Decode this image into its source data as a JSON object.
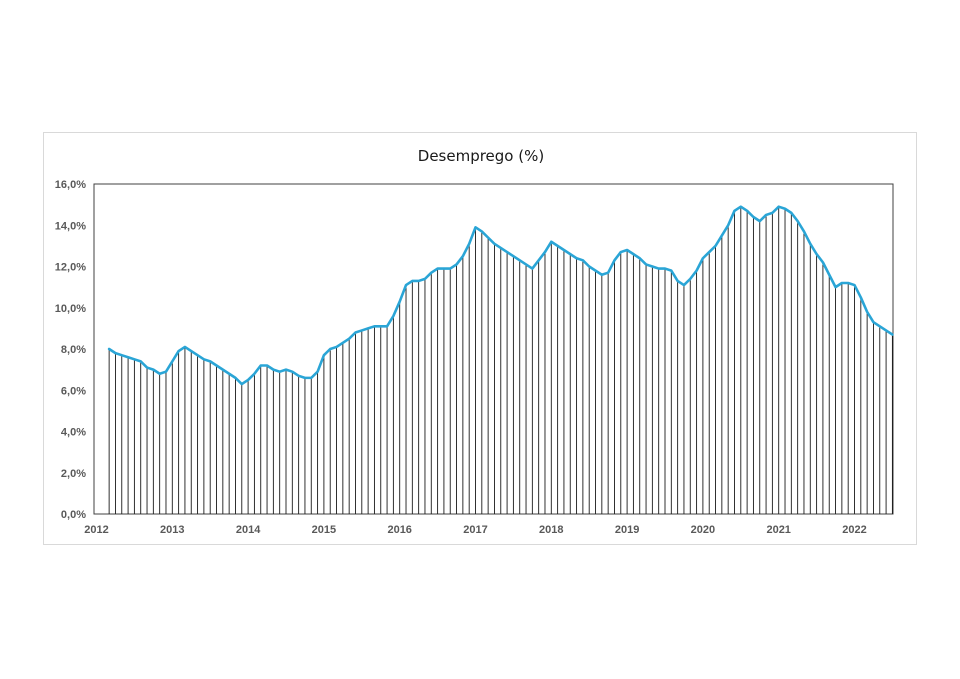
{
  "chart_data": {
    "type": "line",
    "title": "Desemprego (%)",
    "xlabel": "",
    "ylabel": "",
    "ylim": [
      0,
      16
    ],
    "y_ticks": [
      "0,0%",
      "2,0%",
      "4,0%",
      "6,0%",
      "8,0%",
      "10,0%",
      "12,0%",
      "14,0%",
      "16,0%"
    ],
    "x_ticks": [
      "2012",
      "2013",
      "2014",
      "2015",
      "2016",
      "2017",
      "2018",
      "2019",
      "2020",
      "2021",
      "2022"
    ],
    "grid": false,
    "legend": "none",
    "drop_lines": true,
    "colors": {
      "line": "#2aa5d6",
      "drop_lines": "#1a1a1a",
      "frame": "#d9d9d9",
      "plot_border": "#404040"
    },
    "series": [
      {
        "x_start": "2012-03",
        "frequency": "monthly",
        "values": [
          8.0,
          7.8,
          7.7,
          7.6,
          7.5,
          7.4,
          7.1,
          7.0,
          6.8,
          6.9,
          7.4,
          7.9,
          8.1,
          7.9,
          7.7,
          7.5,
          7.4,
          7.2,
          7.0,
          6.8,
          6.6,
          6.3,
          6.5,
          6.8,
          7.2,
          7.2,
          7.0,
          6.9,
          7.0,
          6.9,
          6.7,
          6.6,
          6.6,
          6.9,
          7.7,
          8.0,
          8.1,
          8.3,
          8.5,
          8.8,
          8.9,
          9.0,
          9.1,
          9.1,
          9.1,
          9.6,
          10.3,
          11.1,
          11.3,
          11.3,
          11.4,
          11.7,
          11.9,
          11.9,
          11.9,
          12.1,
          12.5,
          13.1,
          13.9,
          13.7,
          13.4,
          13.1,
          12.9,
          12.7,
          12.5,
          12.3,
          12.1,
          11.9,
          12.3,
          12.7,
          13.2,
          13.0,
          12.8,
          12.6,
          12.4,
          12.3,
          12.0,
          11.8,
          11.6,
          11.7,
          12.3,
          12.7,
          12.8,
          12.6,
          12.4,
          12.1,
          12.0,
          11.9,
          11.9,
          11.8,
          11.3,
          11.1,
          11.4,
          11.8,
          12.4,
          12.7,
          13.0,
          13.5,
          14.0,
          14.7,
          14.9,
          14.7,
          14.4,
          14.2,
          14.5,
          14.6,
          14.9,
          14.8,
          14.6,
          14.2,
          13.7,
          13.1,
          12.6,
          12.2,
          11.6,
          11.0,
          11.2,
          11.2,
          11.1,
          10.5,
          9.8,
          9.3,
          9.1,
          8.9,
          8.7
        ]
      }
    ]
  }
}
